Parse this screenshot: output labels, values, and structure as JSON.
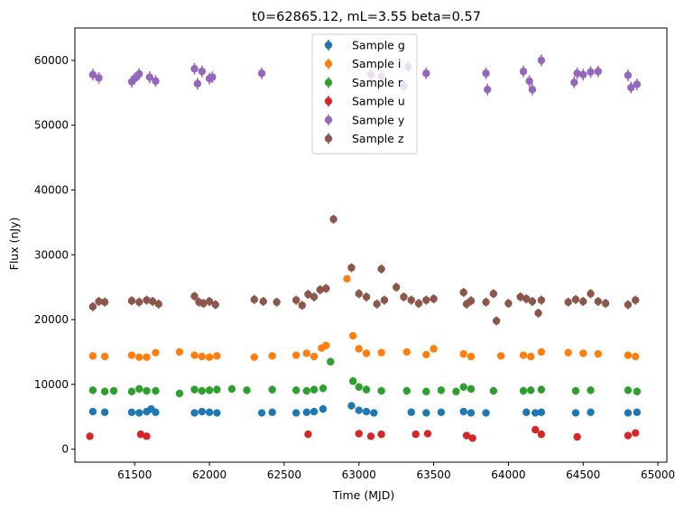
{
  "chart_data": {
    "type": "scatter",
    "title": "t0=62865.12, mL=3.55 beta=0.57",
    "xlabel": "Time (MJD)",
    "ylabel": "Flux (nJy)",
    "xlim": [
      61100,
      65060
    ],
    "ylim": [
      -2000,
      65000
    ],
    "xticks": [
      61500,
      62000,
      62500,
      63000,
      63500,
      64000,
      64500,
      65000
    ],
    "yticks": [
      0,
      10000,
      20000,
      30000,
      40000,
      50000,
      60000
    ],
    "grid": false,
    "legend_position": "top-center",
    "series": [
      {
        "name": "Sample g",
        "color": "#1f77b4",
        "err": 300,
        "x": [
          61220,
          61300,
          61480,
          61530,
          61580,
          61610,
          61640,
          61900,
          61950,
          62000,
          62050,
          62350,
          62420,
          62580,
          62650,
          62700,
          62760,
          62950,
          63000,
          63050,
          63100,
          63350,
          63450,
          63550,
          63700,
          63750,
          63850,
          64120,
          64180,
          64220,
          64450,
          64550,
          64800,
          64860
        ],
        "y": [
          5800,
          5700,
          5700,
          5600,
          5800,
          6200,
          5700,
          5600,
          5800,
          5700,
          5600,
          5600,
          5700,
          5600,
          5700,
          5800,
          6200,
          6700,
          6000,
          5800,
          5600,
          5700,
          5600,
          5700,
          5800,
          5600,
          5600,
          5700,
          5600,
          5700,
          5600,
          5700,
          5600,
          5700
        ]
      },
      {
        "name": "Sample i",
        "color": "#ff7f0e",
        "err": 500,
        "x": [
          61220,
          61300,
          61480,
          61530,
          61580,
          61640,
          61800,
          61900,
          61950,
          62000,
          62050,
          62300,
          62420,
          62580,
          62650,
          62700,
          62750,
          62780,
          62920,
          62960,
          63000,
          63050,
          63150,
          63320,
          63450,
          63500,
          63700,
          63750,
          63950,
          64100,
          64150,
          64220,
          64400,
          64500,
          64600,
          64800,
          64850
        ],
        "y": [
          14400,
          14300,
          14500,
          14200,
          14200,
          14900,
          15000,
          14500,
          14300,
          14200,
          14400,
          14200,
          14400,
          14500,
          14800,
          14300,
          15600,
          16000,
          26300,
          17500,
          15500,
          14800,
          14900,
          15000,
          14600,
          15500,
          14700,
          14300,
          14400,
          14500,
          14300,
          15000,
          14900,
          14800,
          14700,
          14500,
          14300
        ]
      },
      {
        "name": "Sample r",
        "color": "#2ca02c",
        "err": 600,
        "x": [
          61220,
          61300,
          61360,
          61480,
          61530,
          61580,
          61640,
          61800,
          61900,
          61950,
          62000,
          62050,
          62150,
          62250,
          62420,
          62580,
          62650,
          62700,
          62760,
          62810,
          62960,
          63000,
          63050,
          63150,
          63320,
          63450,
          63550,
          63650,
          63700,
          63750,
          63900,
          64100,
          64150,
          64220,
          64450,
          64550,
          64800,
          64860
        ],
        "y": [
          9100,
          8900,
          9000,
          8900,
          9300,
          9000,
          9000,
          8600,
          9200,
          9000,
          9100,
          9200,
          9300,
          9100,
          9200,
          9100,
          9000,
          9200,
          9400,
          13500,
          10500,
          9600,
          9200,
          9000,
          9000,
          8900,
          9100,
          8900,
          9600,
          9300,
          9000,
          9000,
          9100,
          9200,
          9000,
          9100,
          9100,
          8900
        ]
      },
      {
        "name": "Sample u",
        "color": "#d62728",
        "err": 500,
        "x": [
          61200,
          61540,
          61580,
          62660,
          63000,
          63080,
          63150,
          63380,
          63460,
          63720,
          63760,
          64180,
          64220,
          64460,
          64800,
          64850
        ],
        "y": [
          2000,
          2300,
          2000,
          2300,
          2400,
          2000,
          2300,
          2300,
          2400,
          2100,
          1700,
          3000,
          2300,
          1900,
          2100,
          2500
        ],
        "x_hidden": []
      },
      {
        "name": "Sample y",
        "color": "#9467bd",
        "err": 900,
        "x": [
          61220,
          61260,
          61480,
          61500,
          61530,
          61600,
          61640,
          61900,
          61920,
          61950,
          62000,
          62020,
          62350,
          63080,
          63150,
          63300,
          63330,
          63450,
          63850,
          63860,
          64100,
          64140,
          64160,
          64220,
          64440,
          64460,
          64500,
          64550,
          64600,
          64800,
          64820,
          64860
        ],
        "y": [
          57800,
          57300,
          56700,
          57200,
          57900,
          57400,
          56800,
          58700,
          56400,
          58300,
          57200,
          57400,
          58000,
          57800,
          57500,
          56000,
          59000,
          58000,
          58000,
          55500,
          58300,
          56800,
          55500,
          60000,
          56600,
          58000,
          57800,
          58200,
          58300,
          57700,
          55800,
          56300
        ]
      },
      {
        "name": "Sample z",
        "color": "#8c564b",
        "err": 700,
        "x": [
          61220,
          61260,
          61300,
          61480,
          61530,
          61580,
          61620,
          61660,
          61900,
          61930,
          61960,
          62000,
          62040,
          62300,
          62360,
          62450,
          62580,
          62620,
          62660,
          62700,
          62740,
          62780,
          62830,
          62950,
          63000,
          63050,
          63120,
          63150,
          63170,
          63250,
          63300,
          63350,
          63400,
          63450,
          63500,
          63700,
          63720,
          63750,
          63850,
          63900,
          63920,
          64000,
          64080,
          64120,
          64160,
          64200,
          64220,
          64400,
          64450,
          64500,
          64550,
          64600,
          64650,
          64800,
          64850
        ],
        "y": [
          22000,
          22800,
          22700,
          22900,
          22700,
          23000,
          22800,
          22400,
          23600,
          22700,
          22500,
          22800,
          22300,
          23100,
          22800,
          22700,
          23000,
          22200,
          23900,
          23500,
          24600,
          24800,
          35500,
          28000,
          24000,
          23500,
          22400,
          27800,
          23000,
          25000,
          23500,
          23000,
          22500,
          23000,
          23200,
          24200,
          22400,
          22900,
          22700,
          24000,
          19800,
          22500,
          23500,
          23200,
          22800,
          21000,
          23000,
          22700,
          23100,
          22800,
          24000,
          22800,
          22500,
          22300,
          23000
        ]
      }
    ]
  }
}
